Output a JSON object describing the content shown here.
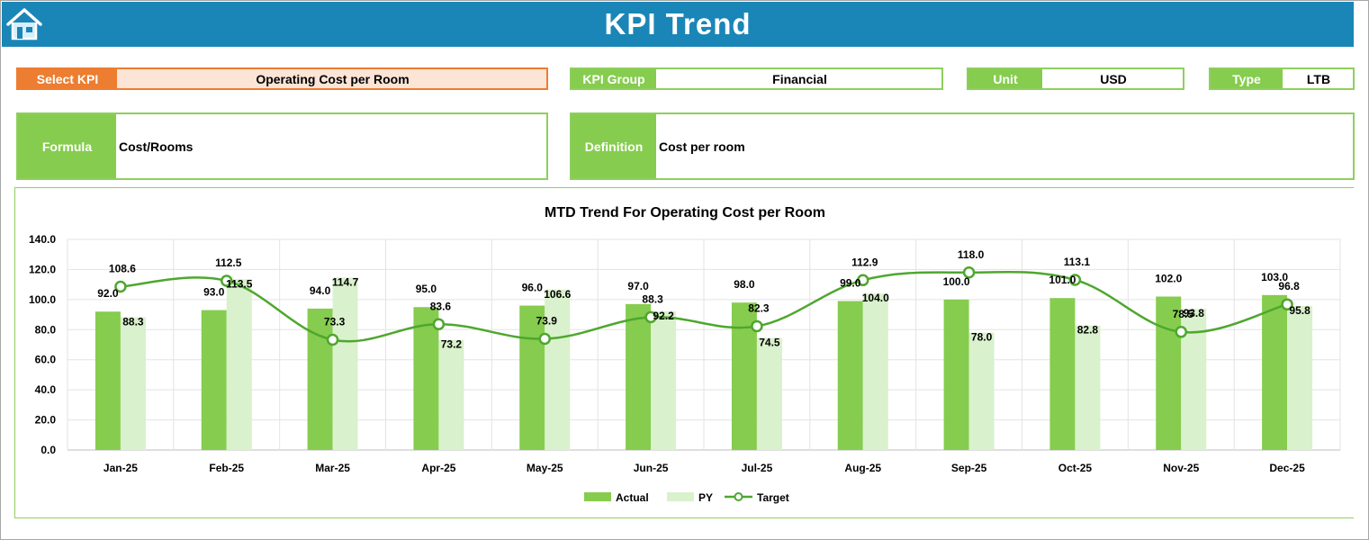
{
  "header": {
    "title": "KPI Trend"
  },
  "kpi": {
    "select_label": "Select KPI",
    "select_value": "Operating Cost per Room",
    "group_label": "KPI Group",
    "group_value": "Financial",
    "unit_label": "Unit",
    "unit_value": "USD",
    "type_label": "Type",
    "type_value": "LTB",
    "formula_label": "Formula",
    "formula_value": "Cost/Rooms",
    "definition_label": "Definition",
    "definition_value": "Cost per room"
  },
  "colors": {
    "header": "#1a86b7",
    "select_label_bg": "#ed7d31",
    "select_value_bg": "#fce4d6",
    "accent_green": "#86cc4e",
    "actual": "#86cc4e",
    "py": "#d9f1cc",
    "target": "#4ea72e"
  },
  "chart_data": {
    "type": "bar",
    "title": "MTD Trend For Operating Cost per Room",
    "categories": [
      "Jan-25",
      "Feb-25",
      "Mar-25",
      "Apr-25",
      "May-25",
      "Jun-25",
      "Jul-25",
      "Aug-25",
      "Sep-25",
      "Oct-25",
      "Nov-25",
      "Dec-25"
    ],
    "series": [
      {
        "name": "Actual",
        "type": "bar",
        "values": [
          92.0,
          93.0,
          94.0,
          95.0,
          96.0,
          97.0,
          98.0,
          99.0,
          100.0,
          101.0,
          102.0,
          103.0
        ]
      },
      {
        "name": "PY",
        "type": "bar",
        "values": [
          88.3,
          113.5,
          114.7,
          73.2,
          106.6,
          92.2,
          74.5,
          104.0,
          78.0,
          82.8,
          93.8,
          95.8
        ]
      },
      {
        "name": "Target",
        "type": "line",
        "values": [
          108.6,
          112.5,
          73.3,
          83.6,
          73.9,
          88.3,
          82.3,
          112.9,
          118.0,
          113.1,
          78.5,
          96.8
        ]
      }
    ],
    "ylim": [
      0,
      140
    ],
    "yticks": [
      "0.0",
      "20.0",
      "40.0",
      "60.0",
      "80.0",
      "100.0",
      "120.0",
      "140.0"
    ],
    "grid": true,
    "legend": "bottom"
  }
}
